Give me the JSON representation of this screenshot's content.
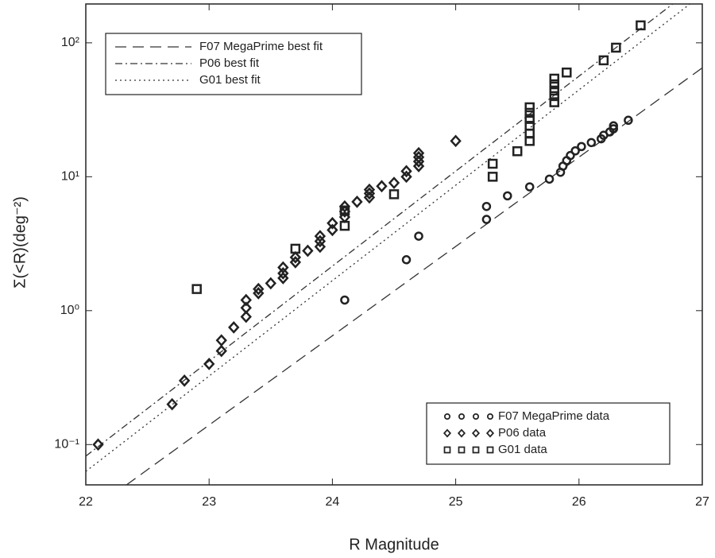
{
  "chart_data": {
    "type": "scatter",
    "xlabel": "R Magnitude",
    "ylabel": "Σ(<R)(deg⁻²)",
    "xlim": [
      22,
      27
    ],
    "ylim": [
      0.05,
      195
    ],
    "yscale": "log",
    "xticks": [
      22,
      23,
      24,
      25,
      26,
      27
    ],
    "yticks": [
      {
        "value": 0.1,
        "label": "10⁻¹"
      },
      {
        "value": 1,
        "label": "10⁰"
      },
      {
        "value": 10,
        "label": "10¹"
      },
      {
        "value": 100,
        "label": "10²"
      }
    ],
    "series": [
      {
        "name": "F07 MegaPrime best fit",
        "kind": "line",
        "style": "dashed",
        "color": "#333",
        "legend": "upper left",
        "x": [
          22.33,
          27
        ],
        "values": [
          0.05,
          65
        ]
      },
      {
        "name": "P06 best fit",
        "kind": "line",
        "style": "dashdot",
        "color": "#333",
        "legend": "upper left",
        "x": [
          22,
          26.76
        ],
        "values": [
          0.082,
          195
        ]
      },
      {
        "name": "G01 best fit",
        "kind": "line",
        "style": "dotted",
        "color": "#333",
        "legend": "upper left",
        "x": [
          22,
          26.9
        ],
        "values": [
          0.063,
          195
        ]
      },
      {
        "name": "F07 MegaPrime data",
        "kind": "marker",
        "marker": "circle",
        "color": "#222",
        "legend": "lower right",
        "x": [
          24.1,
          24.6,
          24.7,
          25.25,
          25.25,
          25.42,
          25.6,
          25.76,
          25.85,
          25.87,
          25.9,
          25.93,
          25.97,
          26.02,
          26.1,
          26.18,
          26.2,
          26.25,
          26.28,
          26.28,
          26.4
        ],
        "values": [
          1.2,
          2.4,
          3.6,
          4.8,
          6.0,
          7.2,
          8.4,
          9.6,
          10.8,
          12,
          13.2,
          14.4,
          15.6,
          16.8,
          18,
          19.2,
          20.4,
          21.6,
          22.8,
          24,
          26.4
        ]
      },
      {
        "name": "P06 data",
        "kind": "marker",
        "marker": "diamond",
        "color": "#222",
        "legend": "lower right",
        "x": [
          22.1,
          22.7,
          22.8,
          23.0,
          23.1,
          23.1,
          23.2,
          23.3,
          23.3,
          23.3,
          23.4,
          23.4,
          23.5,
          23.6,
          23.6,
          23.6,
          23.7,
          23.7,
          23.8,
          23.9,
          23.9,
          23.9,
          24.0,
          24.0,
          24.1,
          24.1,
          24.1,
          24.2,
          24.3,
          24.3,
          24.3,
          24.4,
          24.5,
          24.6,
          24.6,
          24.7,
          24.7,
          24.7,
          24.7,
          25.0
        ],
        "values": [
          0.1,
          0.2,
          0.3,
          0.4,
          0.5,
          0.6,
          0.75,
          0.9,
          1.05,
          1.2,
          1.35,
          1.45,
          1.6,
          1.75,
          1.9,
          2.1,
          2.3,
          2.5,
          2.8,
          3.0,
          3.3,
          3.6,
          4.0,
          4.5,
          5.0,
          5.5,
          6.0,
          6.5,
          7.0,
          7.5,
          8.0,
          8.5,
          9.0,
          10,
          11,
          12,
          13,
          14,
          15,
          18.5
        ]
      },
      {
        "name": "G01 data",
        "kind": "marker",
        "marker": "square",
        "color": "#222",
        "legend": "lower right",
        "x": [
          22.9,
          23.7,
          24.1,
          24.1,
          24.5,
          25.3,
          25.3,
          25.5,
          25.6,
          25.6,
          25.6,
          25.6,
          25.6,
          25.6,
          25.8,
          25.8,
          25.8,
          25.8,
          25.8,
          25.9,
          26.2,
          26.3,
          26.5
        ],
        "values": [
          1.45,
          2.9,
          4.3,
          5.6,
          7.4,
          10,
          12.5,
          15.5,
          18.5,
          21,
          24,
          27,
          30,
          33,
          36,
          40,
          44,
          49,
          54,
          60,
          74,
          92,
          135
        ]
      }
    ]
  }
}
